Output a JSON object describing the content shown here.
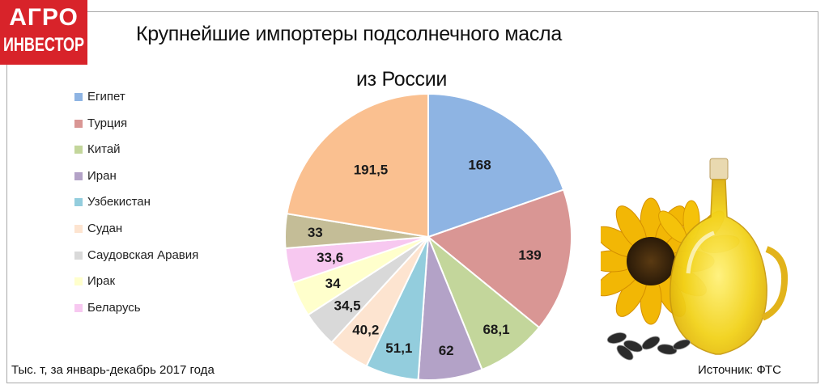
{
  "logo": {
    "line1": "АГРО",
    "line2": "ИНВЕСТОР"
  },
  "title_line1": "Крупнейшие импортеры подсолнечного масла",
  "title_line2": "из России",
  "note": "Тыс. т, за январь-декабрь 2017 года",
  "source": "Источник: ФТС",
  "chart_data": {
    "type": "pie",
    "title": "Крупнейшие импортеры подсолнечного масла из России",
    "unit_note": "Тыс. т, за январь-декабрь 2017 года",
    "legend_position": "left",
    "slices": [
      {
        "label": "Египет",
        "value": 168,
        "value_text": "168",
        "color": "#8eb4e3"
      },
      {
        "label": "Турция",
        "value": 139,
        "value_text": "139",
        "color": "#d99694"
      },
      {
        "label": "Китай",
        "value": 68.1,
        "value_text": "68,1",
        "color": "#c3d69b"
      },
      {
        "label": "Иран",
        "value": 62,
        "value_text": "62",
        "color": "#b3a2c7"
      },
      {
        "label": "Узбекистан",
        "value": 51.1,
        "value_text": "51,1",
        "color": "#93cddd"
      },
      {
        "label": "Судан",
        "value": 40.2,
        "value_text": "40,2",
        "color": "#fde4d0"
      },
      {
        "label": "Саудовская Аравия",
        "value": 34.5,
        "value_text": "34,5",
        "color": "#d9d9d9"
      },
      {
        "label": "Ирак",
        "value": 34,
        "value_text": "34",
        "color": "#ffffcc"
      },
      {
        "label": "Беларусь",
        "value": 33.6,
        "value_text": "33,6",
        "color": "#f7c8f0"
      },
      {
        "label": "",
        "value": 33,
        "value_text": "33",
        "color": "#c4bd97"
      },
      {
        "label": "",
        "value": 191.5,
        "value_text": "191,5",
        "color": "#fac090"
      }
    ]
  }
}
